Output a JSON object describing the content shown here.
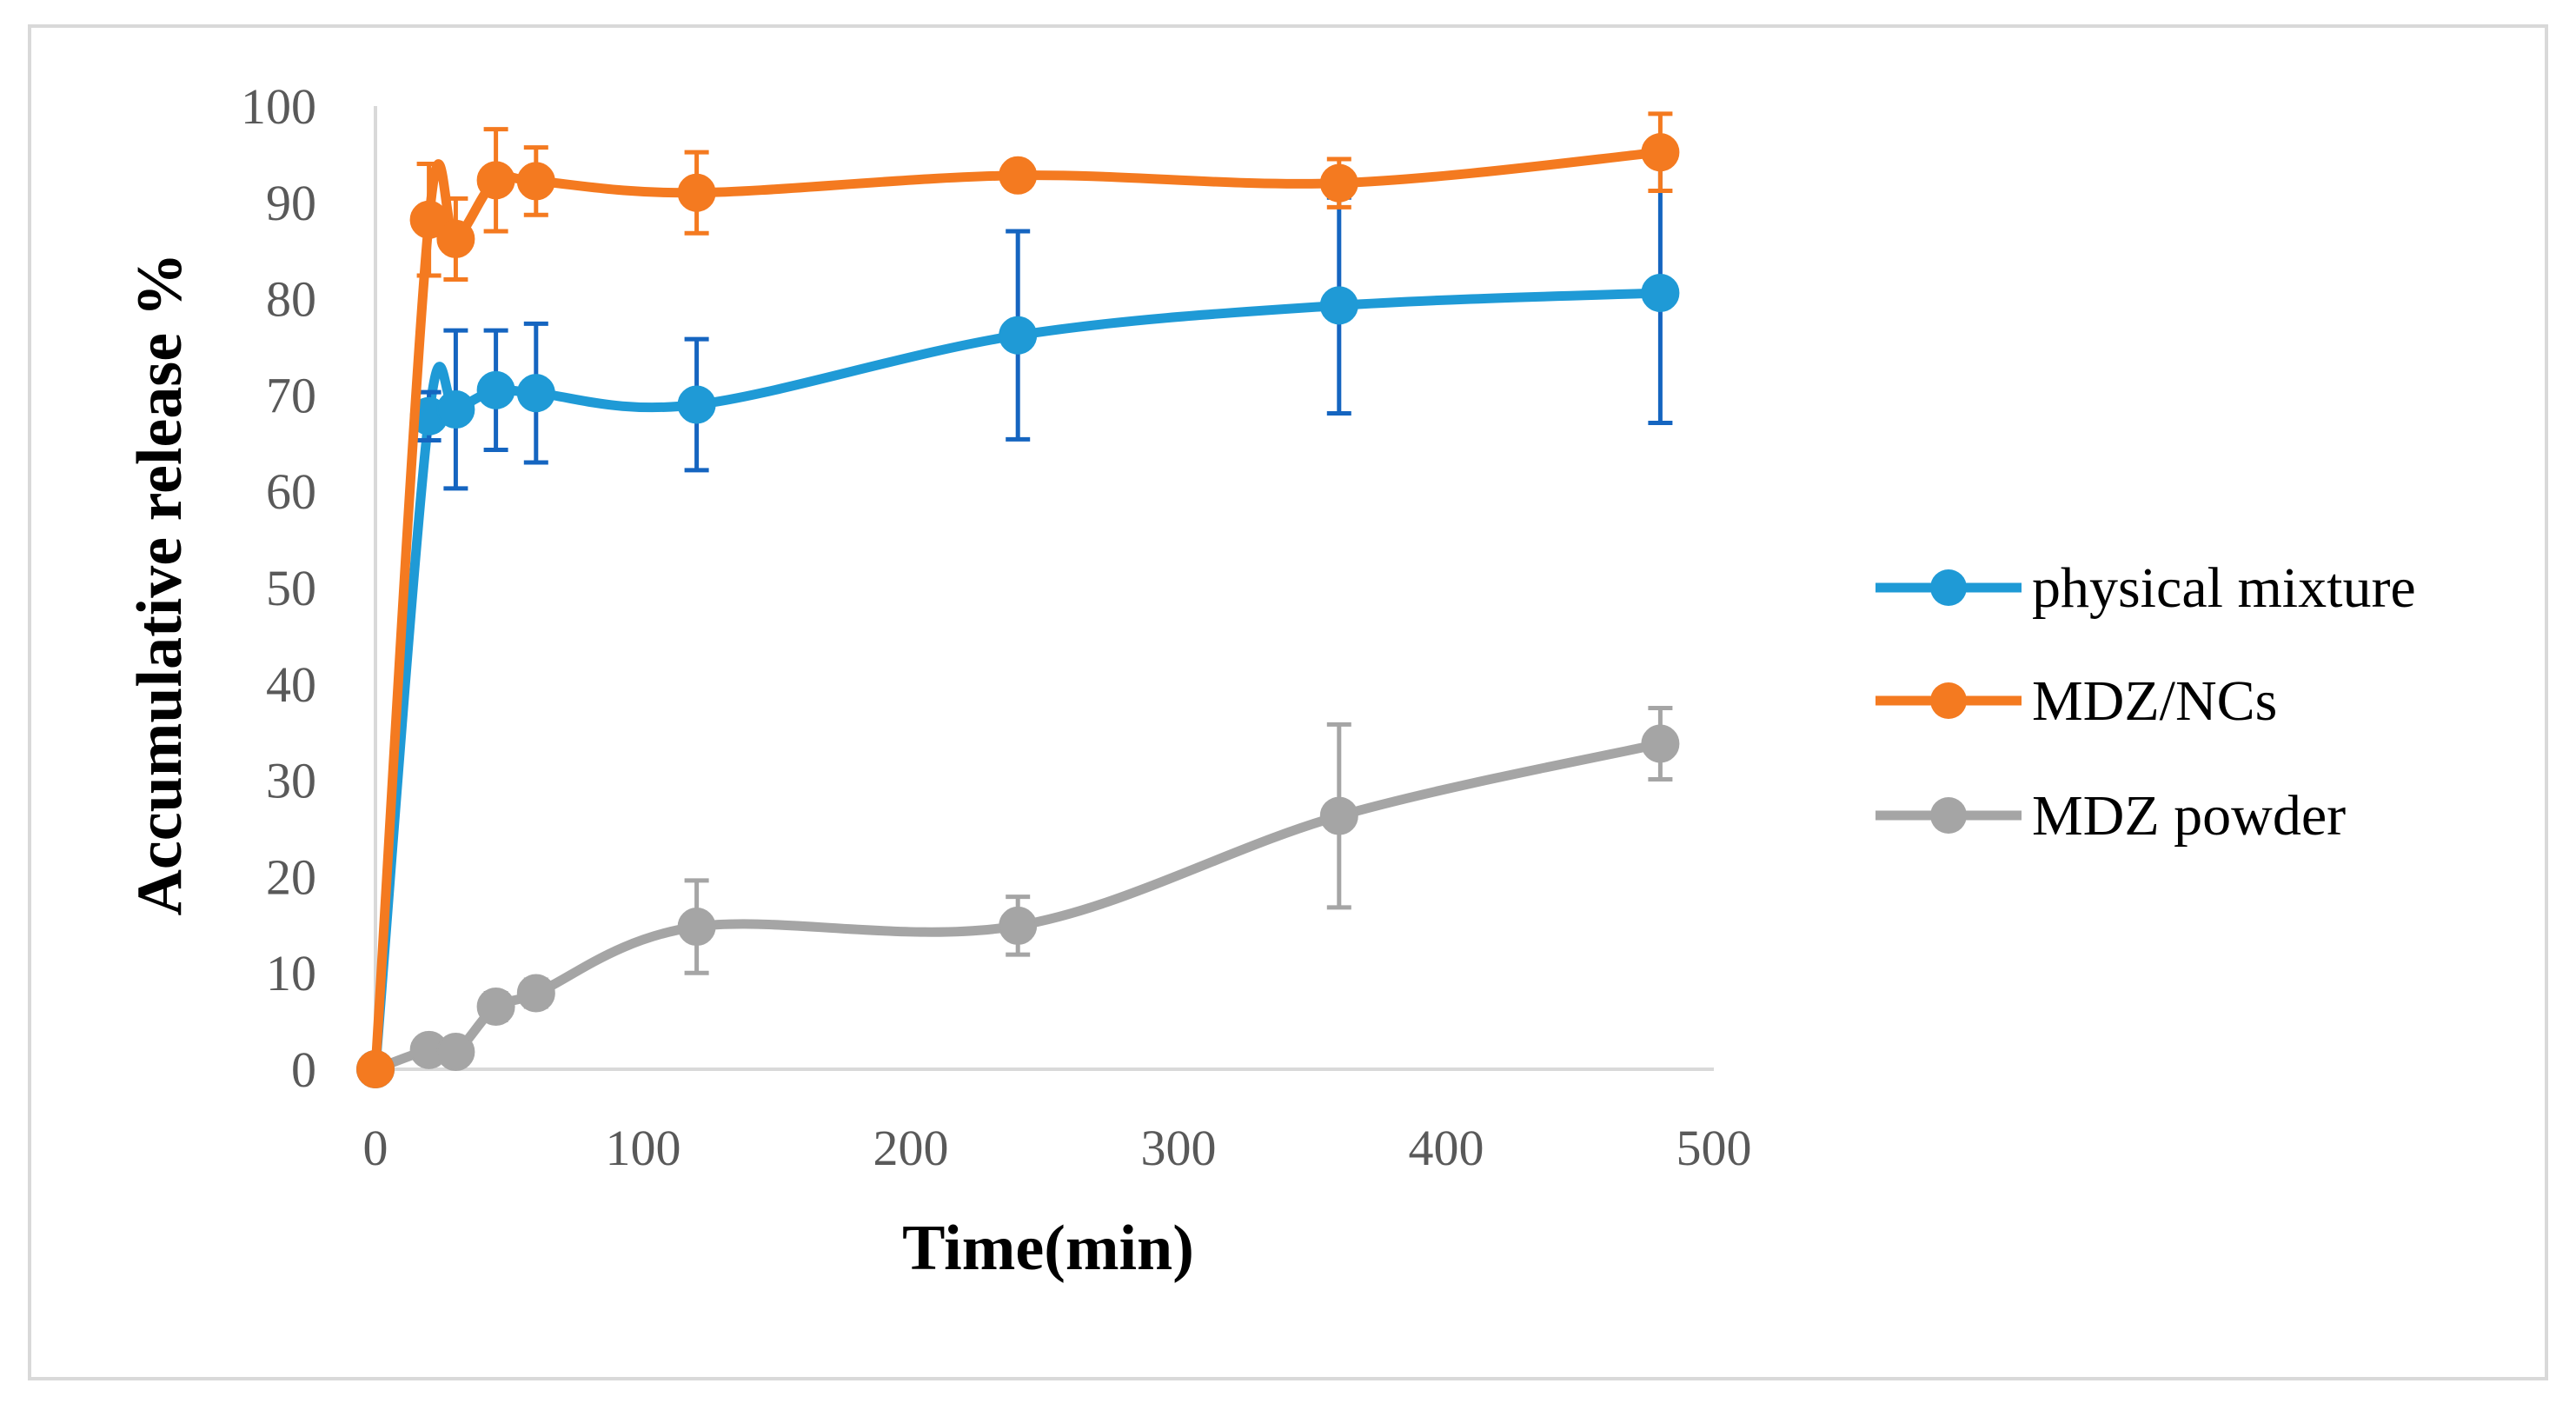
{
  "chart_data": {
    "type": "line",
    "title": "",
    "xlabel": "Time(min)",
    "ylabel": "Accumulative  release %",
    "xlim": [
      0,
      500
    ],
    "ylim": [
      0,
      100
    ],
    "x_ticks": [
      0,
      100,
      200,
      300,
      400,
      500
    ],
    "y_ticks": [
      0,
      10,
      20,
      30,
      40,
      50,
      60,
      70,
      80,
      90,
      100
    ],
    "grid": false,
    "legend_position": "right",
    "x": [
      0,
      20,
      30,
      45,
      60,
      120,
      240,
      360,
      480
    ],
    "series": [
      {
        "name": "physical mixture",
        "color": "#1F9AD6",
        "error_color": "#1565C0",
        "values": [
          0,
          67.8,
          68.5,
          70.5,
          70.2,
          69.0,
          76.2,
          79.3,
          80.6
        ],
        "errors": [
          0,
          2.5,
          8.2,
          6.2,
          7.2,
          6.8,
          10.8,
          11.2,
          13.5
        ]
      },
      {
        "name": "MDZ/NCs",
        "color": "#F47A20",
        "error_color": "#F47A20",
        "values": [
          0,
          88.2,
          86.2,
          92.3,
          92.2,
          91.0,
          92.8,
          92.0,
          95.2
        ],
        "errors": [
          0,
          5.8,
          4.2,
          5.3,
          3.5,
          4.2,
          0.8,
          2.5,
          4.0
        ]
      },
      {
        "name": "MDZ powder",
        "color": "#A5A5A5",
        "error_color": "#A5A5A5",
        "values": [
          0,
          2.0,
          1.8,
          6.5,
          7.9,
          14.8,
          14.9,
          26.3,
          33.8
        ],
        "errors": [
          0,
          0.6,
          0.6,
          1.4,
          1.4,
          4.8,
          3.0,
          9.5,
          3.7
        ]
      }
    ]
  }
}
